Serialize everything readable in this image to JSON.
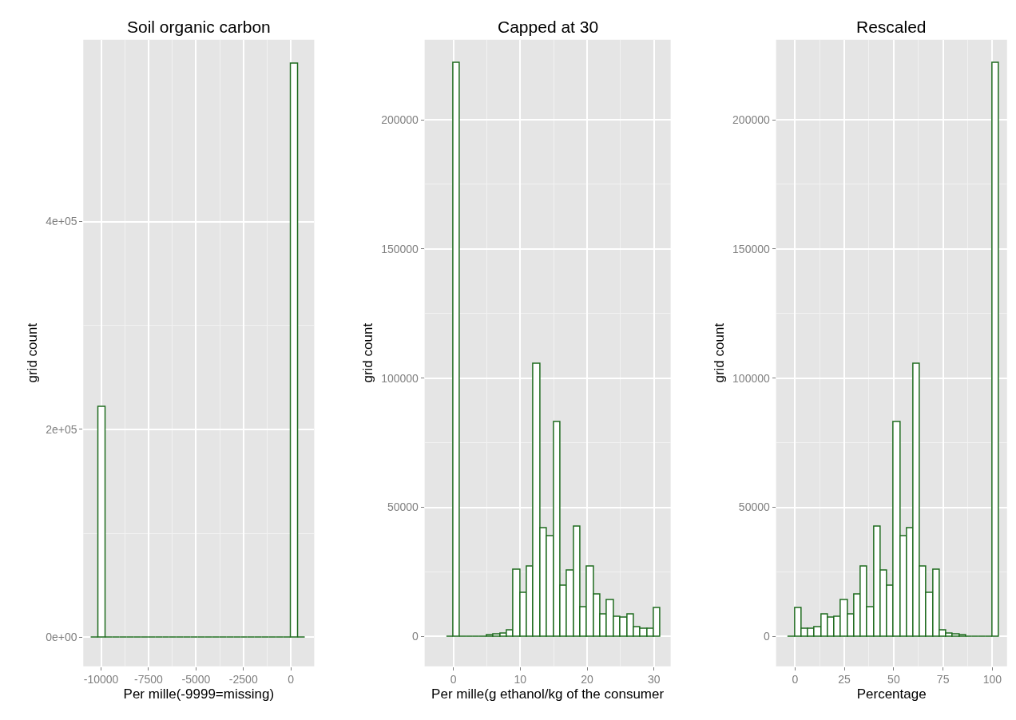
{
  "chart_data": [
    {
      "type": "histogram",
      "title": "Soil organic carbon",
      "xlabel": "Per mille(-9999=missing)",
      "ylabel": "grid count",
      "color": "#1e6b1e",
      "grid": true,
      "bins": [
        -10500,
        -10125,
        -9750,
        -9375,
        -9000,
        -8625,
        -8250,
        -7875,
        -7500,
        -7125,
        -6750,
        -6375,
        -6000,
        -5625,
        -5250,
        -4875,
        -4500,
        -4125,
        -3750,
        -3375,
        -3000,
        -2625,
        -2250,
        -1875,
        -1500,
        -1125,
        -750,
        -375,
        0,
        375,
        750
      ],
      "values": [
        0,
        222000,
        0,
        0,
        0,
        0,
        0,
        0,
        0,
        0,
        0,
        0,
        0,
        0,
        0,
        0,
        0,
        0,
        0,
        0,
        0,
        0,
        0,
        0,
        0,
        0,
        0,
        0,
        552000,
        0
      ],
      "xlim": [
        -10940,
        1230
      ],
      "xticks": [
        -10000,
        -7500,
        -5000,
        -2500,
        0
      ],
      "ylim": [
        -28000,
        575000
      ],
      "yticks": [
        {
          "value": 0,
          "label": "0e+00"
        },
        {
          "value": 200000,
          "label": "2e+05"
        },
        {
          "value": 400000,
          "label": "4e+05"
        }
      ]
    },
    {
      "type": "histogram",
      "title": "Capped at 30",
      "xlabel": "Per mille(g ethanol/kg of the consumer",
      "ylabel": "grid count",
      "color": "#1e6b1e",
      "grid": true,
      "bins": [
        -1,
        0,
        1,
        2,
        3,
        4,
        5,
        6,
        7,
        8,
        9,
        10,
        11,
        12,
        13,
        14,
        15,
        16,
        17,
        18,
        19,
        20,
        21,
        22,
        23,
        24,
        25,
        26,
        27,
        28,
        29,
        30,
        31
      ],
      "values": [
        0,
        222000,
        0,
        0,
        0,
        0,
        400,
        800,
        1300,
        2500,
        25900,
        16900,
        27100,
        105600,
        41900,
        39000,
        83100,
        19800,
        25500,
        42700,
        11500,
        27000,
        16400,
        8700,
        14100,
        7800,
        7300,
        8700,
        3700,
        2900,
        2900,
        11200
      ],
      "xlim": [
        -4.3,
        32.5
      ],
      "xticks": [
        0,
        10,
        20,
        30
      ],
      "ylim": [
        -11500,
        231000
      ],
      "yticks": [
        0,
        50000,
        100000,
        150000,
        200000
      ]
    },
    {
      "type": "histogram",
      "title": "Rescaled",
      "xlabel": "Percentage",
      "ylabel": "grid count",
      "color": "#1e6b1e",
      "grid": true,
      "bins": [
        -3.33,
        0,
        3.33,
        6.67,
        10,
        13.33,
        16.67,
        20,
        23.33,
        26.67,
        30,
        33.33,
        36.67,
        40,
        43.33,
        46.67,
        50,
        53.33,
        56.67,
        60,
        63.33,
        66.67,
        70,
        73.33,
        76.67,
        80,
        83.33,
        86.67,
        90,
        93.33,
        96.67,
        100,
        103.33
      ],
      "values": [
        0,
        11200,
        2900,
        2900,
        3700,
        8700,
        7300,
        7800,
        14100,
        8700,
        16400,
        27000,
        11500,
        42700,
        25500,
        19800,
        83100,
        39000,
        41900,
        105600,
        27100,
        16900,
        25900,
        2500,
        1300,
        800,
        400,
        0,
        0,
        0,
        0,
        222000
      ],
      "xlim": [
        -9.6,
        107.4
      ],
      "xticks": [
        0,
        25,
        50,
        75,
        100
      ],
      "ylim": [
        -11500,
        231000
      ],
      "yticks": [
        0,
        50000,
        100000,
        150000,
        200000
      ]
    }
  ]
}
